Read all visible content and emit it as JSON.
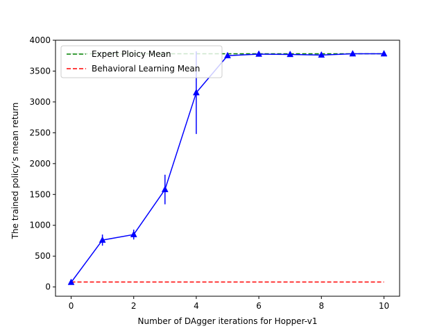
{
  "chart_data": {
    "type": "line",
    "xlabel": "Number of DAgger iterations for Hopper-v1",
    "ylabel": "The trained policy’s mean return",
    "xlim": [
      -0.5,
      10.5
    ],
    "ylim": [
      -150,
      4000
    ],
    "xticks": [
      0,
      2,
      4,
      6,
      8,
      10
    ],
    "yticks": [
      0,
      500,
      1000,
      1500,
      2000,
      2500,
      3000,
      3500,
      4000
    ],
    "grid": false,
    "legend_position": "top-left",
    "series": [
      {
        "name": "",
        "kind": "errorbar-line",
        "color": "#0000ff",
        "marker": "triangle",
        "x": [
          0,
          1,
          2,
          3,
          4,
          5,
          6,
          7,
          8,
          9,
          10
        ],
        "y": [
          75,
          760,
          850,
          1580,
          3150,
          3750,
          3775,
          3770,
          3760,
          3780,
          3780
        ],
        "yerr": [
          10,
          90,
          80,
          240,
          670,
          20,
          15,
          15,
          15,
          10,
          10
        ]
      },
      {
        "name": "Expert Ploicy Mean",
        "kind": "dashed-line",
        "color": "#008000",
        "x": [
          0,
          10
        ],
        "y": [
          3780,
          3780
        ]
      },
      {
        "name": "Behavioral Learning Mean",
        "kind": "dashed-line",
        "color": "#ff0000",
        "x": [
          0,
          10
        ],
        "y": [
          80,
          80
        ]
      }
    ]
  }
}
